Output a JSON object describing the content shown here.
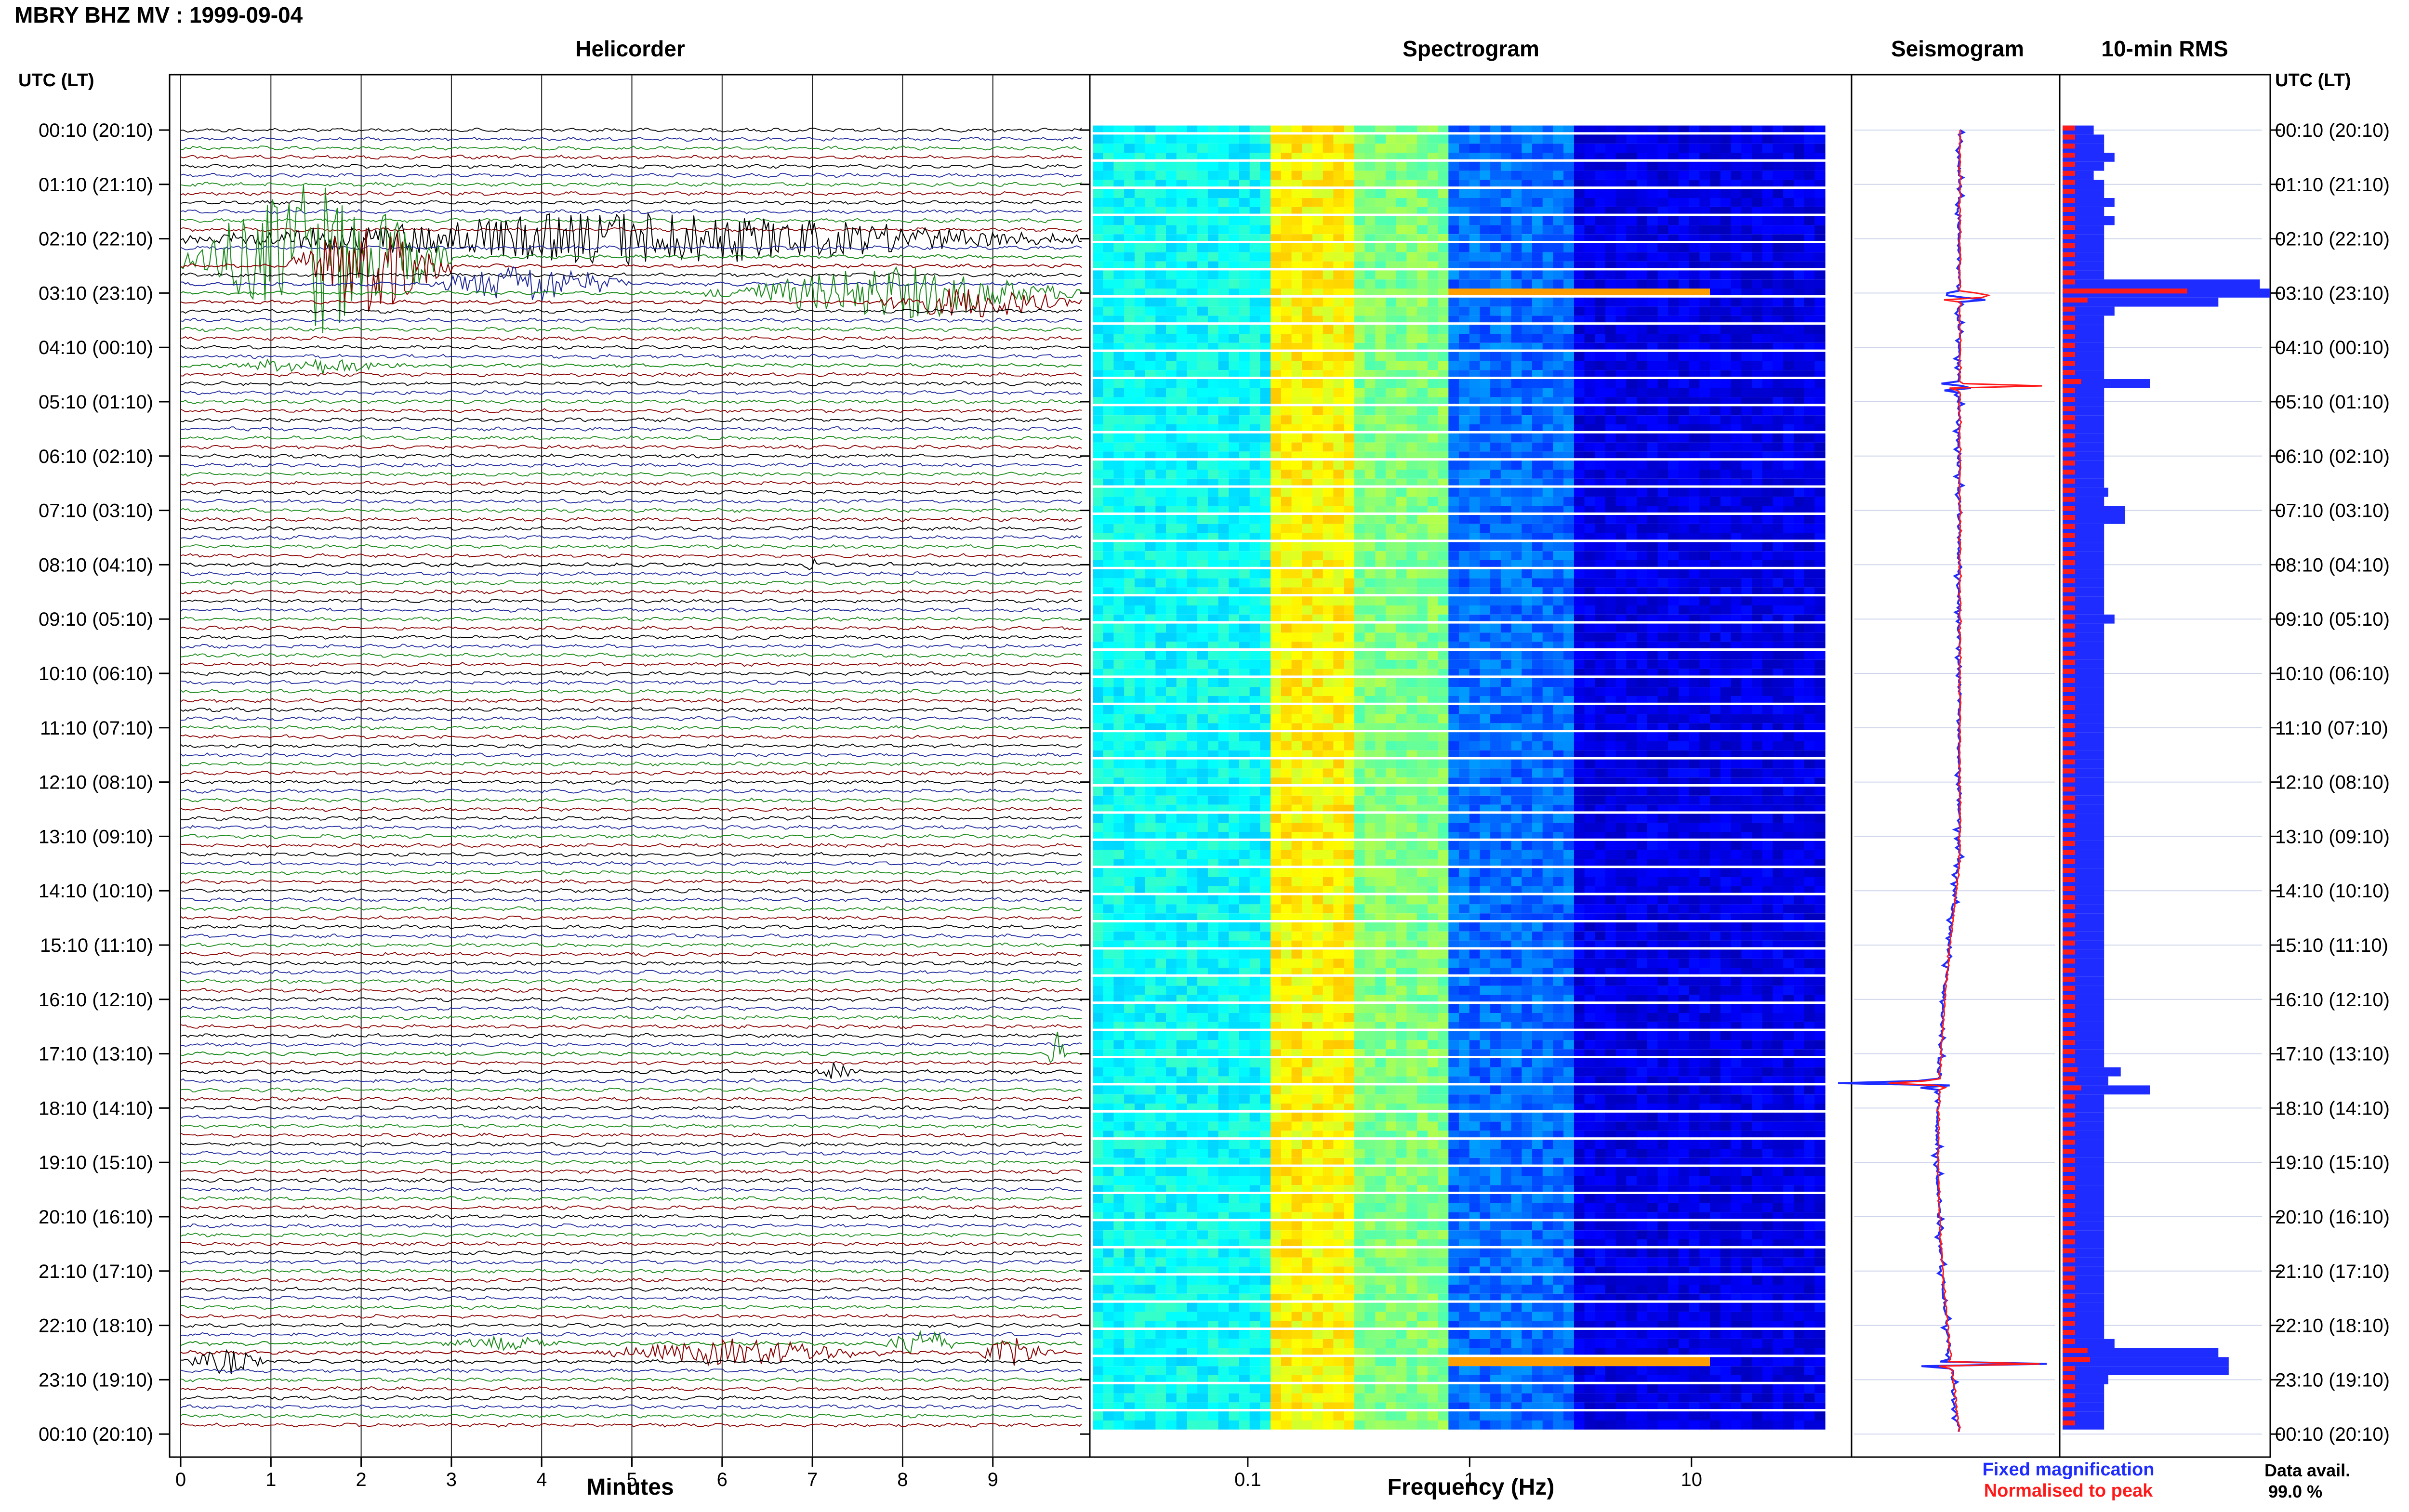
{
  "title": "MBRY BHZ MV : 1999-09-04",
  "panels": {
    "helicorder": "Helicorder",
    "spectrogram": "Spectrogram",
    "seismogram": "Seismogram",
    "rms": "10-min RMS"
  },
  "time_axis_label": "UTC (LT)",
  "time_ticks": [
    "00:10 (20:10)",
    "01:10 (21:10)",
    "02:10 (22:10)",
    "03:10 (23:10)",
    "04:10 (00:10)",
    "05:10 (01:10)",
    "06:10 (02:10)",
    "07:10 (03:10)",
    "08:10 (04:10)",
    "09:10 (05:10)",
    "10:10 (06:10)",
    "11:10 (07:10)",
    "12:10 (08:10)",
    "13:10 (09:10)",
    "14:10 (10:10)",
    "15:10 (11:10)",
    "16:10 (12:10)",
    "17:10 (13:10)",
    "18:10 (14:10)",
    "19:10 (15:10)",
    "20:10 (16:10)",
    "21:10 (17:10)",
    "22:10 (18:10)",
    "23:10 (19:10)",
    "00:10 (20:10)"
  ],
  "legend": {
    "fixed": "Fixed magnification",
    "normalised": "Normalised to peak",
    "fixed_color": "#1e2cff",
    "normalised_color": "#ff1a1a"
  },
  "data_availability": {
    "label": "Data avail.",
    "value": "99.0 %"
  },
  "chart_data": [
    {
      "type": "line",
      "title": "Helicorder",
      "xlabel": "Minutes",
      "xlim": [
        0,
        10
      ],
      "x_ticks": [
        "0",
        "1",
        "2",
        "3",
        "4",
        "5",
        "6",
        "7",
        "8",
        "9"
      ],
      "rows": 144,
      "trace_colors": [
        "#000000",
        "#1f2a9c",
        "#1a8a1a",
        "#8b0000"
      ],
      "events": [
        {
          "row": 12,
          "start": 0.0,
          "end": 10.0,
          "amp": 3.2
        },
        {
          "row": 14,
          "start": 0.0,
          "end": 3.0,
          "amp": 9.0
        },
        {
          "row": 15,
          "start": 1.2,
          "end": 3.0,
          "amp": 6.0
        },
        {
          "row": 17,
          "start": 2.7,
          "end": 5.0,
          "amp": 2.5
        },
        {
          "row": 18,
          "start": 5.8,
          "end": 10.0,
          "amp": 3.2
        },
        {
          "row": 19,
          "start": 7.6,
          "end": 10.0,
          "amp": 2.0
        },
        {
          "row": 26,
          "start": 0.4,
          "end": 2.6,
          "amp": 1.0
        },
        {
          "row": 48,
          "start": 6.9,
          "end": 7.1,
          "amp": 0.8
        },
        {
          "row": 104,
          "start": 7.0,
          "end": 7.5,
          "amp": 1.2
        },
        {
          "row": 102,
          "start": 9.6,
          "end": 9.8,
          "amp": 3.0
        },
        {
          "row": 136,
          "start": 0.0,
          "end": 1.0,
          "amp": 1.6
        },
        {
          "row": 135,
          "start": 4.5,
          "end": 7.9,
          "amp": 1.6
        },
        {
          "row": 135,
          "start": 8.8,
          "end": 9.7,
          "amp": 1.8
        },
        {
          "row": 134,
          "start": 7.8,
          "end": 8.6,
          "amp": 2.0
        },
        {
          "row": 134,
          "start": 2.8,
          "end": 4.4,
          "amp": 0.8
        }
      ]
    },
    {
      "type": "heatmap",
      "title": "Spectrogram",
      "xlabel": "Frequency (Hz)",
      "x_scale": "log",
      "xlim": [
        0.02,
        40
      ],
      "x_ticks": [
        0.1,
        1,
        10
      ],
      "x_tick_labels": [
        "0.1",
        "1",
        "10"
      ],
      "colormap": "jet",
      "bright_band_hz": [
        0.13,
        0.8
      ],
      "rows": 144,
      "strong_rows": [
        18,
        136
      ]
    },
    {
      "type": "line",
      "title": "Seismogram",
      "series": [
        {
          "name": "Fixed magnification",
          "color": "#1e2cff"
        },
        {
          "name": "Normalised to peak",
          "color": "#ff1a1a"
        }
      ],
      "spike_rows": [
        18,
        28,
        105,
        136
      ]
    },
    {
      "type": "bar",
      "title": "10-min RMS",
      "rows": 144,
      "series": [
        {
          "name": "Fixed magnification",
          "color": "#1e2cff",
          "values": [
            0.15,
            0.2,
            0.2,
            0.25,
            0.2,
            0.15,
            0.2,
            0.2,
            0.25,
            0.2,
            0.25,
            0.2,
            0.2,
            0.2,
            0.2,
            0.2,
            0.2,
            0.95,
            1.0,
            0.75,
            0.25,
            0.2,
            0.2,
            0.2,
            0.2,
            0.2,
            0.2,
            0.2,
            0.42,
            0.2,
            0.2,
            0.2,
            0.2,
            0.2,
            0.2,
            0.2,
            0.2,
            0.2,
            0.2,
            0.2,
            0.22,
            0.2,
            0.3,
            0.3,
            0.2,
            0.2,
            0.2,
            0.2,
            0.2,
            0.2,
            0.2,
            0.2,
            0.2,
            0.2,
            0.25,
            0.2,
            0.2,
            0.2,
            0.2,
            0.2,
            0.2,
            0.2,
            0.2,
            0.2,
            0.2,
            0.2,
            0.2,
            0.2,
            0.2,
            0.2,
            0.2,
            0.2,
            0.2,
            0.2,
            0.2,
            0.2,
            0.2,
            0.2,
            0.2,
            0.2,
            0.2,
            0.2,
            0.2,
            0.2,
            0.2,
            0.2,
            0.2,
            0.2,
            0.2,
            0.2,
            0.2,
            0.2,
            0.2,
            0.2,
            0.2,
            0.2,
            0.2,
            0.2,
            0.2,
            0.2,
            0.2,
            0.2,
            0.2,
            0.2,
            0.28,
            0.22,
            0.42,
            0.2,
            0.2,
            0.2,
            0.2,
            0.2,
            0.2,
            0.2,
            0.2,
            0.2,
            0.2,
            0.2,
            0.2,
            0.2,
            0.2,
            0.2,
            0.2,
            0.2,
            0.2,
            0.2,
            0.2,
            0.2,
            0.2,
            0.2,
            0.2,
            0.2,
            0.2,
            0.2,
            0.25,
            0.75,
            0.8,
            0.8,
            0.22,
            0.2,
            0.2,
            0.2,
            0.2,
            0.2
          ]
        },
        {
          "name": "Normalised to peak",
          "color": "#ff1a1a",
          "values": [
            0.1,
            0.1,
            0.1,
            0.1,
            0.1,
            0.1,
            0.1,
            0.1,
            0.1,
            0.1,
            0.1,
            0.1,
            0.1,
            0.1,
            0.1,
            0.1,
            0.1,
            0.1,
            1.0,
            0.2,
            0.1,
            0.1,
            0.1,
            0.1,
            0.1,
            0.1,
            0.1,
            0.1,
            0.15,
            0.1,
            0.1,
            0.1,
            0.1,
            0.1,
            0.1,
            0.1,
            0.1,
            0.1,
            0.1,
            0.1,
            0.1,
            0.1,
            0.1,
            0.1,
            0.1,
            0.1,
            0.1,
            0.1,
            0.1,
            0.1,
            0.1,
            0.1,
            0.1,
            0.1,
            0.1,
            0.1,
            0.1,
            0.1,
            0.1,
            0.1,
            0.1,
            0.1,
            0.1,
            0.1,
            0.1,
            0.1,
            0.1,
            0.1,
            0.1,
            0.1,
            0.1,
            0.1,
            0.1,
            0.1,
            0.1,
            0.1,
            0.1,
            0.1,
            0.1,
            0.1,
            0.1,
            0.1,
            0.1,
            0.1,
            0.1,
            0.1,
            0.1,
            0.1,
            0.1,
            0.1,
            0.1,
            0.1,
            0.1,
            0.1,
            0.1,
            0.1,
            0.1,
            0.1,
            0.1,
            0.1,
            0.1,
            0.1,
            0.1,
            0.1,
            0.12,
            0.1,
            0.15,
            0.1,
            0.1,
            0.1,
            0.1,
            0.1,
            0.1,
            0.1,
            0.1,
            0.1,
            0.1,
            0.1,
            0.1,
            0.1,
            0.1,
            0.1,
            0.1,
            0.1,
            0.1,
            0.1,
            0.1,
            0.1,
            0.1,
            0.1,
            0.1,
            0.1,
            0.1,
            0.1,
            0.1,
            0.2,
            0.22,
            0.1,
            0.1,
            0.1,
            0.1,
            0.1,
            0.1,
            0.1
          ]
        }
      ]
    }
  ]
}
